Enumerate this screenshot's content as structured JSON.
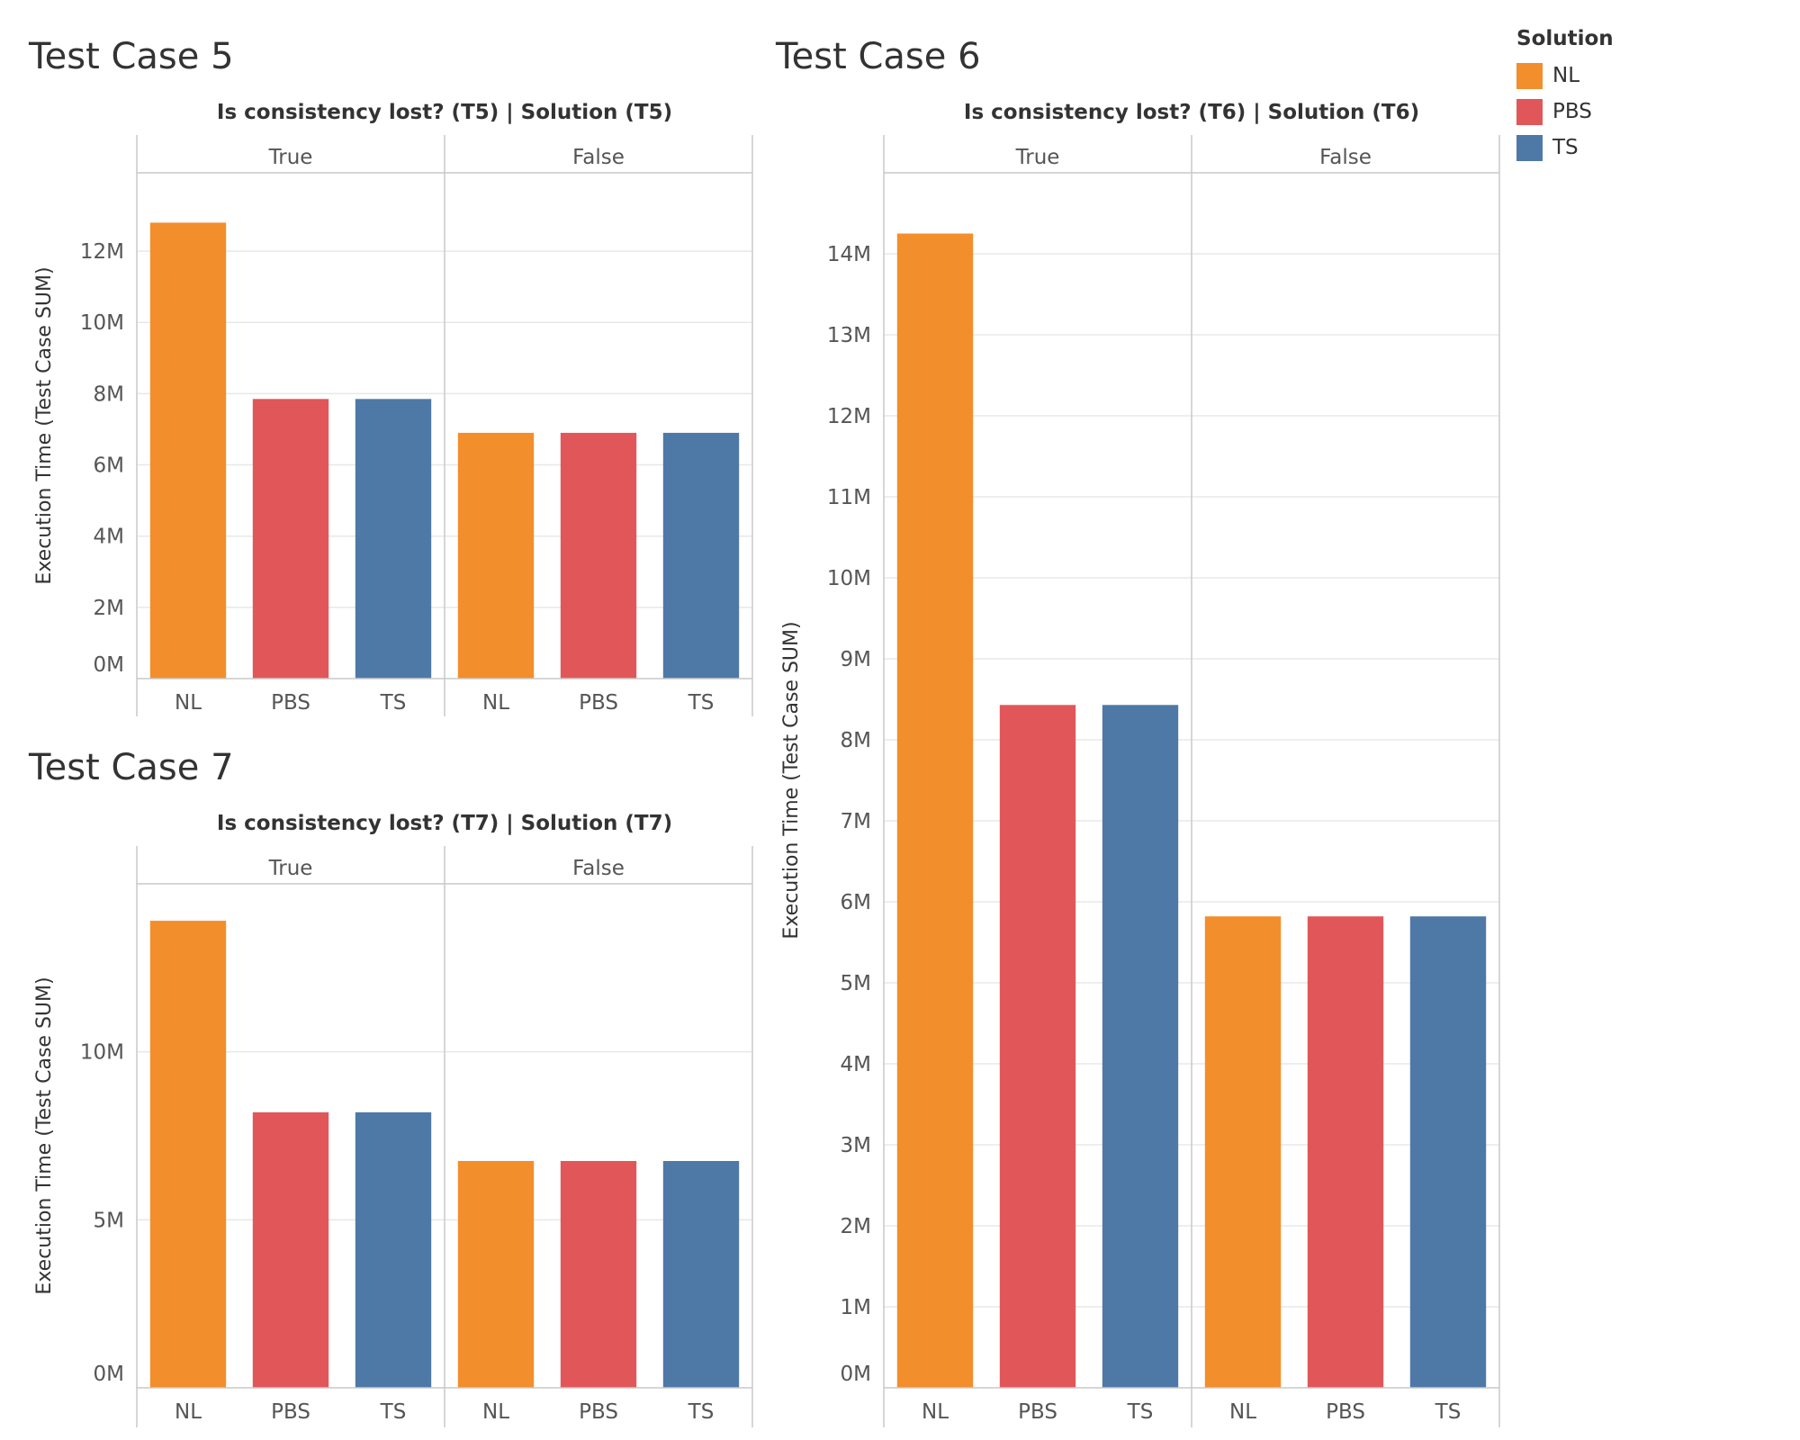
{
  "colors": {
    "NL": "#f28e2b",
    "PBS": "#e15759",
    "TS": "#4e79a7"
  },
  "legend": {
    "title": "Solution",
    "items": [
      {
        "label": "NL",
        "color": "#f28e2b"
      },
      {
        "label": "PBS",
        "color": "#e15759"
      },
      {
        "label": "TS",
        "color": "#4e79a7"
      }
    ]
  },
  "chart_data": [
    {
      "type": "bar",
      "title": "Test Case 5",
      "header": "Is consistency lost? (T5)  |  Solution (T5)",
      "ylabel": "Execution Time (Test Case SUM)",
      "groups": [
        "True",
        "False"
      ],
      "categories": [
        "NL",
        "PBS",
        "TS"
      ],
      "values": [
        [
          12.8,
          7.85,
          7.85
        ],
        [
          6.9,
          6.9,
          6.9
        ]
      ],
      "yticks": [
        0,
        2,
        4,
        6,
        8,
        10,
        12
      ],
      "ytick_labels": [
        "0M",
        "2M",
        "4M",
        "6M",
        "8M",
        "10M",
        "12M"
      ],
      "ylim": [
        0,
        14.2
      ],
      "grid": true
    },
    {
      "type": "bar",
      "title": "Test Case 6",
      "header": "Is consistency lost? (T6)  |  Solution (T6)",
      "ylabel": "Execution Time (Test Case SUM)",
      "groups": [
        "True",
        "False"
      ],
      "categories": [
        "NL",
        "PBS",
        "TS"
      ],
      "values": [
        [
          14.25,
          8.43,
          8.43
        ],
        [
          5.82,
          5.82,
          5.82
        ]
      ],
      "yticks": [
        0,
        1,
        2,
        3,
        4,
        5,
        6,
        7,
        8,
        9,
        10,
        11,
        12,
        13,
        14
      ],
      "ytick_labels": [
        "0M",
        "1M",
        "2M",
        "3M",
        "4M",
        "5M",
        "6M",
        "7M",
        "8M",
        "9M",
        "10M",
        "11M",
        "12M",
        "13M",
        "14M"
      ],
      "ylim": [
        0,
        15.0
      ],
      "grid": true
    },
    {
      "type": "bar",
      "title": "Test Case 7",
      "header": "Is consistency lost? (T7)  |  Solution (T7)",
      "ylabel": "Execution Time (Test Case SUM)",
      "groups": [
        "True",
        "False"
      ],
      "categories": [
        "NL",
        "PBS",
        "TS"
      ],
      "values": [
        [
          13.9,
          8.2,
          8.2
        ],
        [
          6.75,
          6.75,
          6.75
        ]
      ],
      "yticks": [
        0,
        5,
        10
      ],
      "ytick_labels": [
        "0M",
        "5M",
        "10M"
      ],
      "ylim": [
        0,
        15.0
      ],
      "grid": true
    }
  ]
}
